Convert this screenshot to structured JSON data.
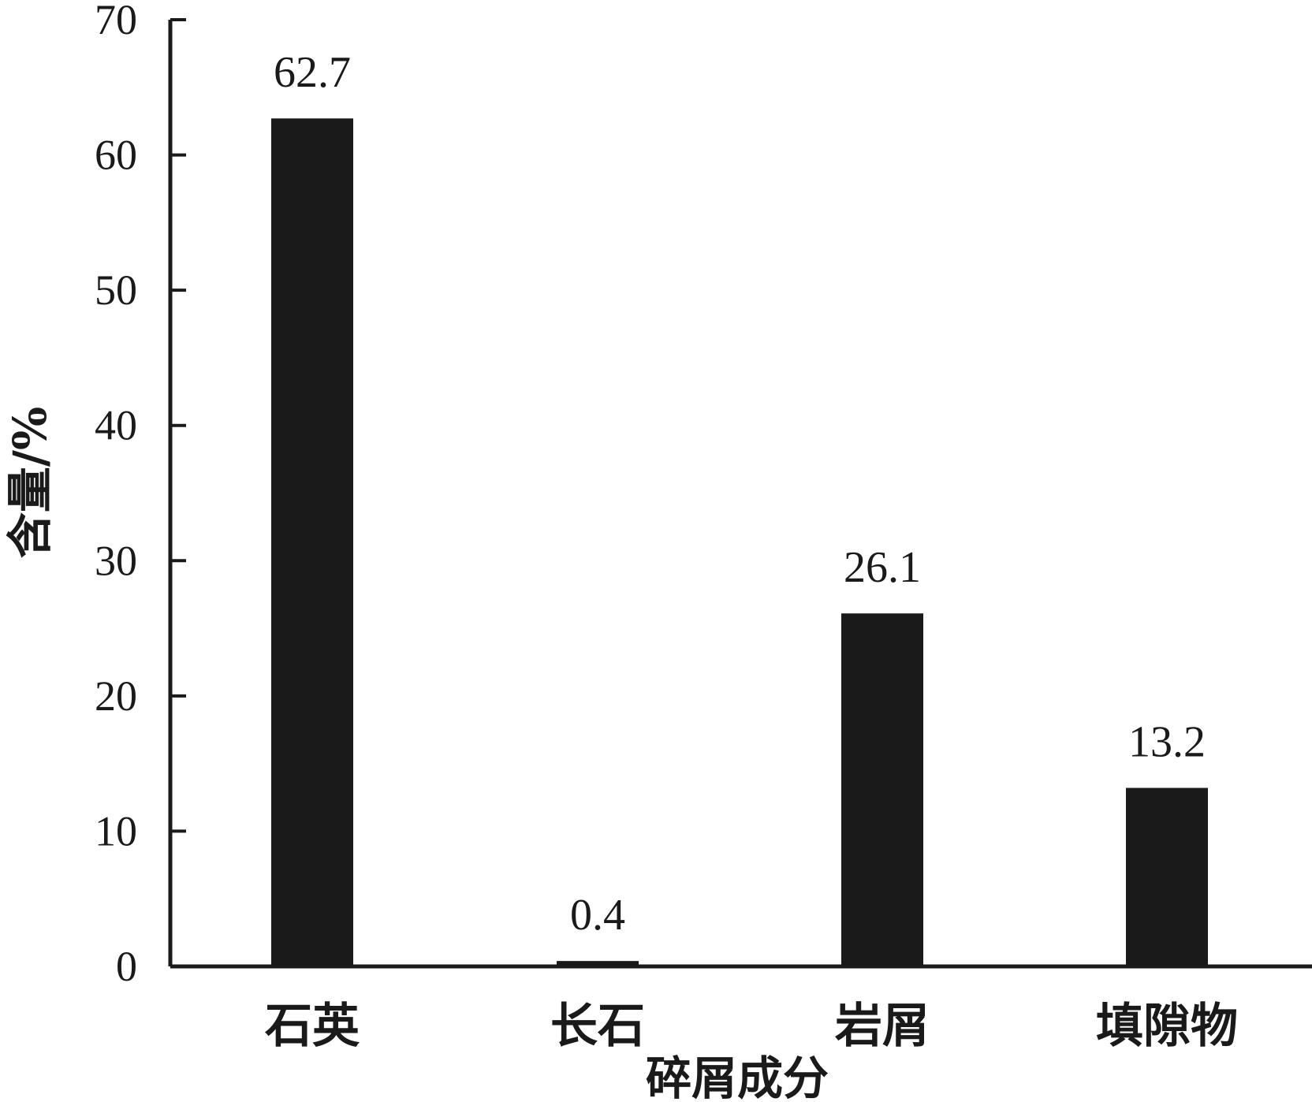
{
  "chart_data": {
    "type": "bar",
    "categories": [
      "石英",
      "长石",
      "岩屑",
      "填隙物"
    ],
    "values": [
      62.7,
      0.4,
      26.1,
      13.2
    ],
    "data_labels": [
      "62.7",
      "0.4",
      "26.1",
      "13.2"
    ],
    "title": "",
    "xlabel": "碎屑成分",
    "ylabel": "含量/%",
    "ylim": [
      0,
      70
    ],
    "yticks": [
      0,
      10,
      20,
      30,
      40,
      50,
      60,
      70
    ],
    "ytick_labels": [
      "0",
      "10",
      "20",
      "30",
      "40",
      "50",
      "60",
      "70"
    ],
    "grid": false,
    "legend": "none",
    "bar_color": "#1a1a1a",
    "axis_color": "#1a1a1a"
  }
}
